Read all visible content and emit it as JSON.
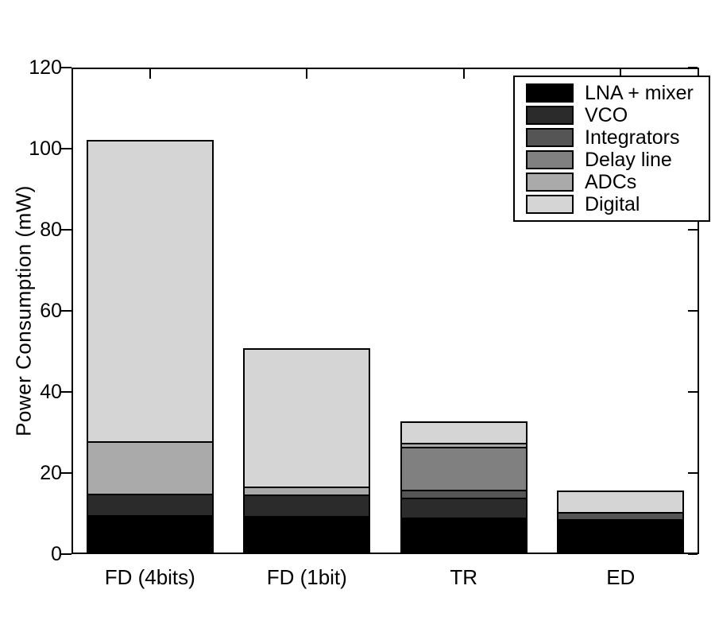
{
  "figure": {
    "background_color": "#ffffff",
    "axis_color": "#000000"
  },
  "chart_data": {
    "type": "bar",
    "stacked": true,
    "title": "",
    "xlabel": "",
    "ylabel": "Power Consumption (mW)",
    "ylim": [
      0,
      120
    ],
    "yticks": [
      0,
      20,
      40,
      60,
      80,
      100,
      120
    ],
    "grid": false,
    "legend_position": "upper right",
    "categories": [
      "FD (4bits)",
      "FD (1bit)",
      "TR",
      "ED"
    ],
    "series": [
      {
        "name": "LNA + mixer",
        "color": "#000000",
        "values": [
          9.0,
          9.0,
          9.0,
          8.8
        ]
      },
      {
        "name": "VCO",
        "color": "#2b2b2b",
        "values": [
          5.0,
          5.0,
          5.0,
          0.0
        ]
      },
      {
        "name": "Integrators",
        "color": "#555555",
        "values": [
          0.0,
          0.0,
          1.6,
          1.4
        ]
      },
      {
        "name": "Delay line",
        "color": "#808080",
        "values": [
          0.0,
          0.0,
          11.1,
          0.0
        ]
      },
      {
        "name": "ADCs",
        "color": "#aaaaaa",
        "values": [
          12.8,
          1.8,
          0.8,
          0.0
        ]
      },
      {
        "name": "Digital",
        "color": "#d5d5d5",
        "values": [
          75.4,
          35.0,
          5.2,
          5.4
        ]
      }
    ],
    "totals": [
      102.2,
      50.8,
      32.7,
      15.6
    ]
  }
}
